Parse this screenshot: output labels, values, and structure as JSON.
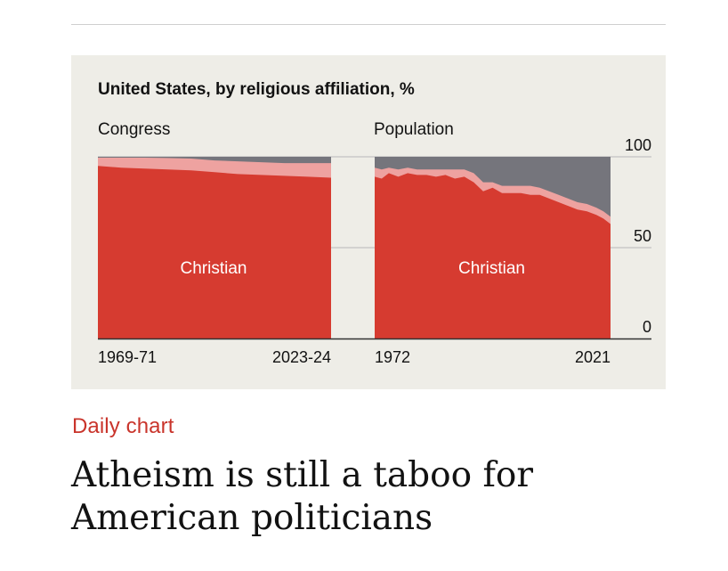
{
  "chart_data": {
    "type": "area",
    "title": "United States, by religious affiliation, %",
    "ylim": [
      0,
      100
    ],
    "yticks": [
      0,
      50,
      100
    ],
    "colors": {
      "christian": "#d63b30",
      "other": "#eea2a0",
      "none": "#75757c",
      "grid": "#b8b8b8",
      "axis": "#333333"
    },
    "panels": [
      {
        "name": "Congress",
        "xtick_labels": [
          "1969-71",
          "2023-24"
        ],
        "area_label": "Christian",
        "x": [
          0,
          0.1,
          0.2,
          0.3,
          0.4,
          0.5,
          0.6,
          0.7,
          0.8,
          0.9,
          1.0
        ],
        "christian": [
          95,
          94,
          93.5,
          93,
          92.5,
          91.5,
          90.5,
          90,
          89.5,
          89,
          88.5
        ],
        "christian_plus_other": [
          99.5,
          99.5,
          99.5,
          99.3,
          99,
          98,
          97.5,
          97,
          96.5,
          96.5,
          96.5
        ]
      },
      {
        "name": "Population",
        "xtick_labels": [
          "1972",
          "2021"
        ],
        "area_label": "Christian",
        "x": [
          0,
          0.03,
          0.06,
          0.1,
          0.14,
          0.18,
          0.22,
          0.26,
          0.3,
          0.34,
          0.38,
          0.42,
          0.46,
          0.5,
          0.54,
          0.58,
          0.62,
          0.66,
          0.7,
          0.74,
          0.78,
          0.82,
          0.86,
          0.9,
          0.94,
          0.97,
          1.0
        ],
        "christian": [
          89,
          88,
          91,
          89,
          91,
          90,
          90,
          89,
          90,
          88,
          89,
          86,
          81,
          83,
          80,
          80,
          80,
          79,
          79,
          77,
          75,
          73,
          71,
          70,
          68,
          66,
          63
        ],
        "christian_plus_other": [
          94,
          93,
          94,
          93,
          94,
          93,
          93,
          93,
          93,
          93,
          93,
          91,
          86,
          86,
          84,
          84,
          84,
          84,
          83,
          81,
          79,
          77,
          75,
          74,
          72,
          70,
          67
        ]
      }
    ]
  },
  "header": {
    "kicker": "Daily chart",
    "headline": "Atheism is still a taboo for American politicians"
  }
}
